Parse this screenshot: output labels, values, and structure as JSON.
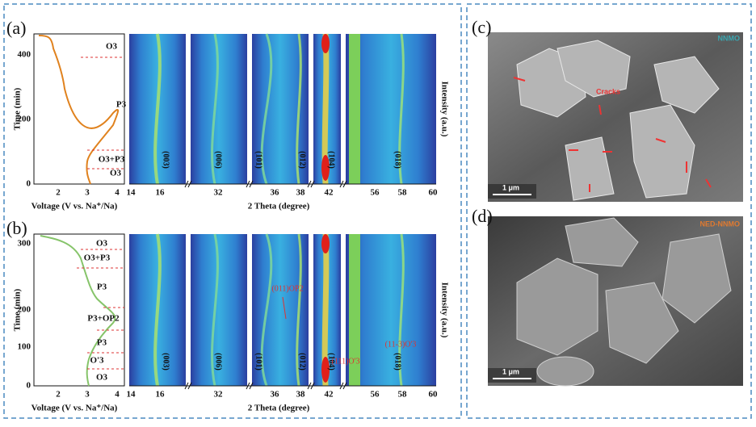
{
  "panel_a": {
    "label": "(a)",
    "time_title": "Time (min)",
    "time_ticks": [
      "400",
      "200",
      "0"
    ],
    "voltage_ticks": [
      "2",
      "3",
      "4"
    ],
    "voltage_title": "Voltage (V vs. Na⁺/Na)",
    "theta_ticks": [
      "14",
      "16",
      "32",
      "36",
      "38",
      "42",
      "56",
      "58",
      "60"
    ],
    "theta_title": "2 Theta (degree)",
    "intensity_title": "Intensity (a.u.)",
    "phases": [
      "O3",
      "P3",
      "O3+P3",
      "O3"
    ],
    "peaks": [
      "(003)",
      "(006)",
      "(101)",
      "(012)",
      "(104)",
      "(018)"
    ]
  },
  "panel_b": {
    "label": "(b)",
    "time_title": "Time (min)",
    "time_ticks": [
      "300",
      "200",
      "100",
      "0"
    ],
    "voltage_ticks": [
      "2",
      "3",
      "4"
    ],
    "voltage_title": "Voltage (V vs. Na⁺/Na)",
    "theta_ticks": [
      "14",
      "16",
      "32",
      "36",
      "38",
      "42",
      "56",
      "58",
      "60"
    ],
    "theta_title": "2 Theta (degree)",
    "intensity_title": "Intensity (a.u.)",
    "phases": [
      "O3",
      "O3+P3",
      "P3",
      "P3+OP2",
      "P3",
      "O'3",
      "O3"
    ],
    "peaks": [
      "(003)",
      "(006)",
      "(101)",
      "(012)",
      "(104)",
      "(018)"
    ],
    "annotations": [
      "(011)OP2",
      "(111)O'3",
      "(11-3)O'3"
    ]
  },
  "panel_c": {
    "label": "(c)",
    "sample": "NNMO",
    "annotation": "Cracks",
    "scale": "1 μm"
  },
  "panel_d": {
    "label": "(d)",
    "sample": "NED-NNMO",
    "scale": "1 μm"
  }
}
